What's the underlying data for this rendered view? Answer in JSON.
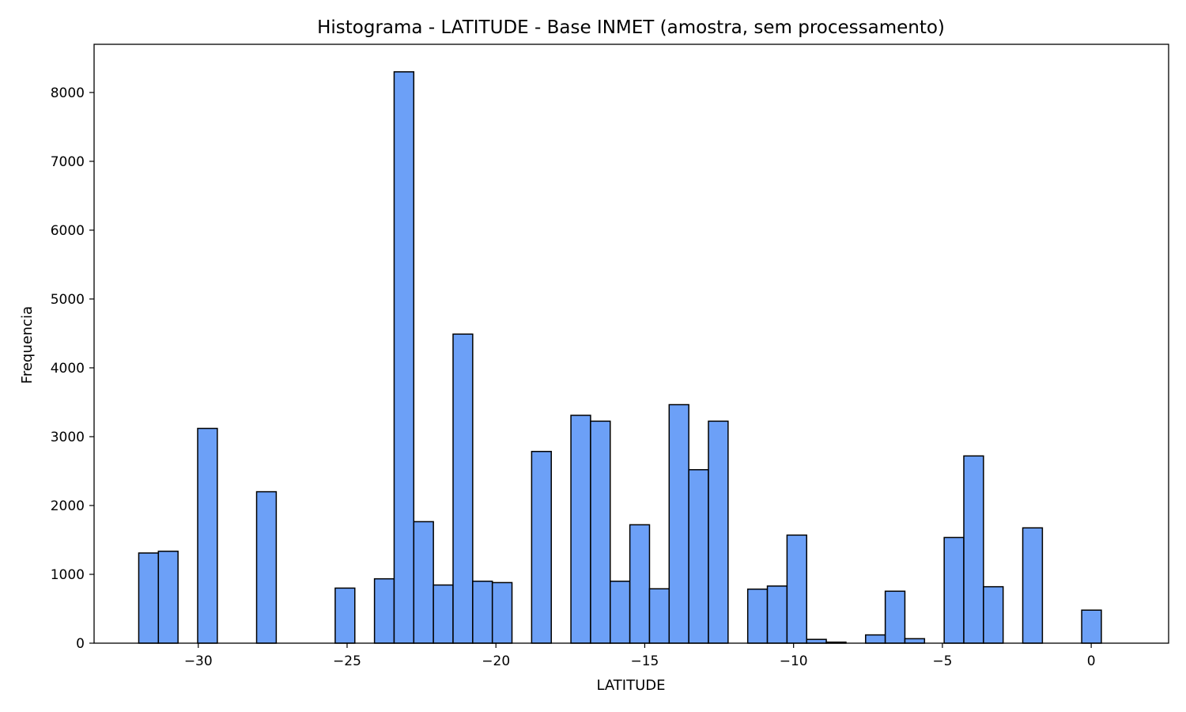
{
  "chart_data": {
    "type": "bar",
    "title": "Histograma - LATITUDE - Base INMET (amostra, sem processamento)",
    "xlabel": "LATITUDE",
    "ylabel": "Frequencia",
    "xlim": [
      -33.5,
      2.6
    ],
    "ylim": [
      0,
      8700
    ],
    "xticks": [
      -30,
      -25,
      -20,
      -15,
      -10,
      -5,
      0
    ],
    "xtick_labels": [
      "−30",
      "−25",
      "−20",
      "−15",
      "−10",
      "−5",
      "0"
    ],
    "yticks": [
      0,
      1000,
      2000,
      3000,
      4000,
      5000,
      6000,
      7000,
      8000
    ],
    "ytick_labels": [
      "0",
      "1000",
      "2000",
      "3000",
      "4000",
      "5000",
      "6000",
      "7000",
      "8000"
    ],
    "grid": false,
    "bar_color": "#6ca0f7",
    "edge_color": "#000000",
    "bin_start": -32.0,
    "bin_width": 0.66,
    "values": [
      1310,
      1335,
      0,
      3120,
      0,
      0,
      2200,
      0,
      0,
      0,
      800,
      0,
      935,
      8300,
      1765,
      845,
      4490,
      900,
      880,
      0,
      2785,
      0,
      3310,
      3225,
      900,
      1720,
      790,
      3465,
      2520,
      3225,
      0,
      785,
      830,
      1570,
      55,
      15,
      0,
      120,
      755,
      65,
      0,
      1535,
      2720,
      820,
      0,
      1675,
      0,
      0,
      480
    ]
  }
}
